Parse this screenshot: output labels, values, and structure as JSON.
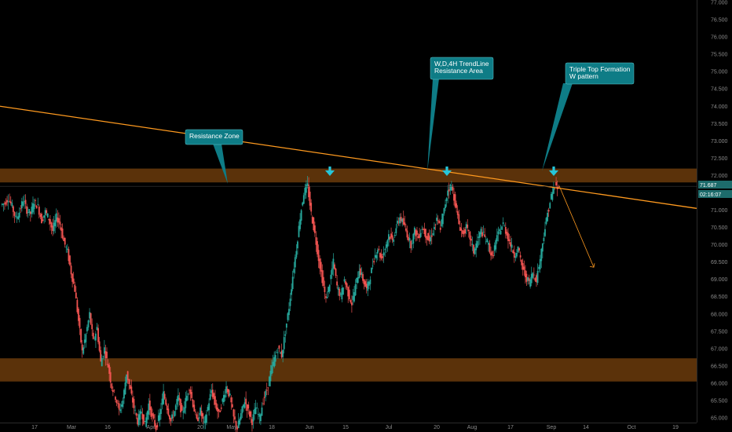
{
  "chart_data": {
    "type": "candlestick",
    "y_axis": {
      "min": 65.0,
      "max": 77.0,
      "side": "right",
      "ticks": [
        "77.000",
        "76.500",
        "76.000",
        "75.500",
        "75.000",
        "74.500",
        "74.000",
        "73.500",
        "73.000",
        "72.500",
        "72.000",
        "71.500",
        "71.000",
        "70.500",
        "70.000",
        "69.500",
        "69.000",
        "68.500",
        "68.000",
        "67.500",
        "67.000",
        "66.500",
        "66.000",
        "65.500",
        "65.000"
      ]
    },
    "x_axis": {
      "ticks": [
        "17",
        "Mar",
        "16",
        "Apr",
        "20",
        "May",
        "18",
        "Jun",
        "15",
        "Jul",
        "20",
        "Aug",
        "17",
        "Sep",
        "14",
        "Oct",
        "19"
      ]
    },
    "current_price": {
      "value": "71.687",
      "countdown": "02:16:07"
    },
    "zones": [
      {
        "name": "upper-resistance-zone",
        "low": 71.8,
        "high": 72.2,
        "color": "#6b3b0c"
      },
      {
        "name": "lower-support-zone",
        "low": 66.05,
        "high": 66.72,
        "color": "#6b3b0c"
      }
    ],
    "trendline": {
      "color": "#ff9a1f",
      "from_price": 74.0,
      "to_price": 71.05
    },
    "projection": {
      "color": "#ff9a1f",
      "from_price": 71.7,
      "to_price": 69.35
    },
    "price_series": [
      71.15,
      71.2,
      71.35,
      71.1,
      70.75,
      70.95,
      71.3,
      71.0,
      70.9,
      71.25,
      71.1,
      70.7,
      70.95,
      70.75,
      70.4,
      70.8,
      70.6,
      70.1,
      69.8,
      69.2,
      68.7,
      67.8,
      66.9,
      67.4,
      68.0,
      67.2,
      67.6,
      66.6,
      67.0,
      66.5,
      65.9,
      65.6,
      65.2,
      65.5,
      66.3,
      65.8,
      65.3,
      64.9,
      65.2,
      64.8,
      65.4,
      65.0,
      64.7,
      65.1,
      65.7,
      65.3,
      64.9,
      65.2,
      65.6,
      65.1,
      65.5,
      65.9,
      65.4,
      64.9,
      65.2,
      64.8,
      65.3,
      65.8,
      65.4,
      65.1,
      65.5,
      65.9,
      65.6,
      65.0,
      64.7,
      65.1,
      65.5,
      65.2,
      64.9,
      65.3,
      65.0,
      65.5,
      65.8,
      66.3,
      66.7,
      67.0,
      66.8,
      67.5,
      68.2,
      69.1,
      69.9,
      70.8,
      71.5,
      71.7,
      70.9,
      70.3,
      69.6,
      69.0,
      68.4,
      68.9,
      69.5,
      68.8,
      68.5,
      69.0,
      68.6,
      68.3,
      68.8,
      69.3,
      69.0,
      68.7,
      69.1,
      69.6,
      69.9,
      69.6,
      69.9,
      70.3,
      70.1,
      70.5,
      70.8,
      70.6,
      70.3,
      70.0,
      70.4,
      70.2,
      70.5,
      70.3,
      70.1,
      70.4,
      70.7,
      70.5,
      71.0,
      71.6,
      71.7,
      71.2,
      70.6,
      70.3,
      70.5,
      70.2,
      69.8,
      70.1,
      70.4,
      70.2,
      70.0,
      69.6,
      70.1,
      70.4,
      70.6,
      70.3,
      70.0,
      69.7,
      69.9,
      69.4,
      69.1,
      68.9,
      69.2,
      69.0,
      69.6,
      70.3,
      70.9,
      71.4,
      71.7,
      71.6
    ],
    "arrows": [
      {
        "name": "top-arrow-1",
        "color": "#26c6da"
      },
      {
        "name": "top-arrow-2",
        "color": "#26c6da"
      },
      {
        "name": "top-arrow-3",
        "color": "#26c6da"
      }
    ],
    "callouts": [
      {
        "name": "callout-resistance-zone",
        "lines": [
          "Resistance Zone"
        ]
      },
      {
        "name": "callout-trendline-resistance",
        "lines": [
          "W,D,4H TrendLine",
          "Resistance Area"
        ]
      },
      {
        "name": "callout-triple-top",
        "lines": [
          "Triple Top Formation",
          "W pattern"
        ]
      }
    ],
    "colors": {
      "up": "#26a69a",
      "down": "#ef5350",
      "callout_bg": "#0e7c86",
      "price_tag_bg": "#1d6b6b"
    }
  }
}
